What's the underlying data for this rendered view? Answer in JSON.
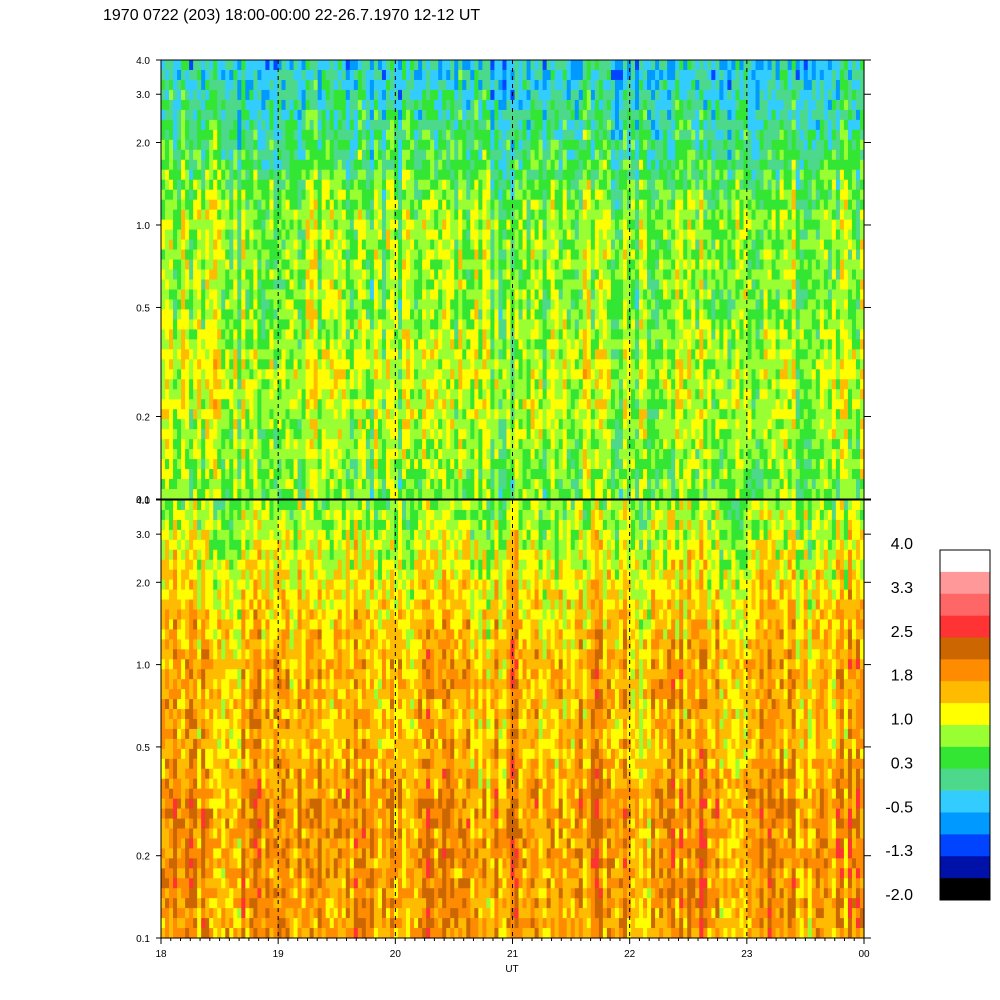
{
  "title": "1970 0722 (203) 18:00-00:00 22-26.7.1970  12-12 UT",
  "chart_data": {
    "type": "heatmap",
    "title": "1970 0722 (203) 18:00-00:00 22-26.7.1970  12-12 UT",
    "xlabel": "UT",
    "x_ticks": [
      "18",
      "19",
      "20",
      "21",
      "22",
      "23",
      "00"
    ],
    "x_range_hours": [
      18,
      24
    ],
    "y_scale": "log",
    "y_range": [
      0.1,
      4.0
    ],
    "y_ticks": [
      "0.1",
      "0.2",
      "0.5",
      "1.0",
      "2.0",
      "3.0",
      "4.0"
    ],
    "y_tick_values": [
      0.1,
      0.2,
      0.5,
      1.0,
      2.0,
      3.0,
      4.0
    ],
    "panels": [
      {
        "name": "upper",
        "description_levels_by_frequency": [
          {
            "y": 0.1,
            "level": 0.6
          },
          {
            "y": 0.3,
            "level": 1.0
          },
          {
            "y": 0.5,
            "level": 0.7
          },
          {
            "y": 1.0,
            "level": 0.8
          },
          {
            "y": 2.0,
            "level": 0.2
          },
          {
            "y": 4.0,
            "level": -0.3
          }
        ]
      },
      {
        "name": "lower",
        "description_levels_by_frequency": [
          {
            "y": 0.1,
            "level": 1.8
          },
          {
            "y": 0.3,
            "level": 1.9
          },
          {
            "y": 0.5,
            "level": 1.6
          },
          {
            "y": 1.0,
            "level": 1.7
          },
          {
            "y": 2.0,
            "level": 1.3
          },
          {
            "y": 4.0,
            "level": 0.7
          }
        ]
      }
    ],
    "colorbar": {
      "labels": [
        "4.0",
        "3.3",
        "2.5",
        "1.8",
        "1.0",
        "0.3",
        "-0.5",
        "-1.3",
        "-2.0"
      ],
      "colors": [
        "#ffffff",
        "#ff9999",
        "#ff6666",
        "#ff3333",
        "#cc6600",
        "#ff8c00",
        "#ffbb00",
        "#ffff00",
        "#99ff33",
        "#33e633",
        "#4dd98c",
        "#33ccff",
        "#0099ff",
        "#0044ff",
        "#0011aa",
        "#000000"
      ]
    }
  }
}
